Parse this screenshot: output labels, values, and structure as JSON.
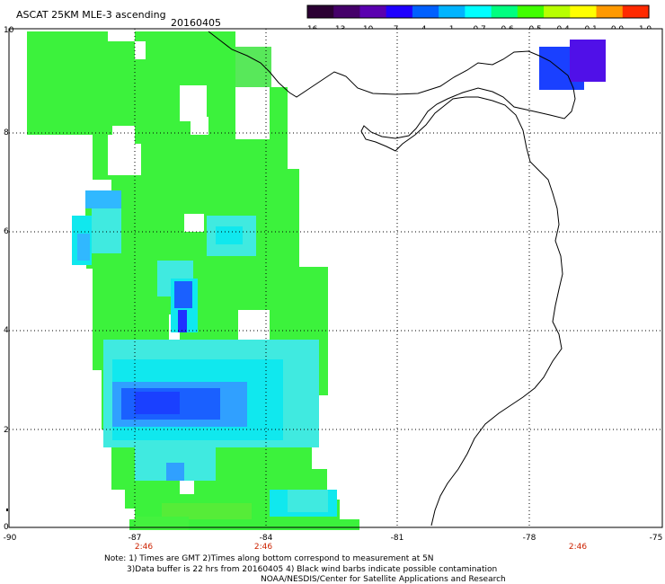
{
  "header": {
    "title": "ASCAT 25KM MLE-3 ascending",
    "date": "20160405"
  },
  "colorbar": {
    "labels": [
      "-16",
      "-13",
      "-10",
      "-7",
      "-4",
      "-1",
      "-0.7",
      "-0.6",
      "-0.5",
      "-0.4",
      "-0.1",
      "0.0",
      "1.0"
    ],
    "colors": [
      "#2b0033",
      "#45006a",
      "#5a00b0",
      "#1f00ff",
      "#0060ff",
      "#00b4ff",
      "#00ffff",
      "#00ff80",
      "#40ff00",
      "#b8ff00",
      "#ffff00",
      "#ff9900",
      "#ff2a00"
    ]
  },
  "map": {
    "lon_labels": [
      "-90",
      "-87",
      "-84",
      "-81",
      "-78",
      "-75"
    ],
    "lat_labels": [
      "0",
      "2",
      "4",
      "6",
      "8",
      "10"
    ],
    "pass_times": [
      "2:46",
      "2:46",
      "2:46"
    ],
    "colors": {
      "green": "#3cf23c",
      "cyan": "#10e8ee",
      "light_blue": "#30b8ff",
      "blue": "#1a40ff",
      "purple": "#5010e8",
      "time_label": "#cc2200",
      "grid": "#000000"
    }
  },
  "notes": {
    "line1": "Note: 1) Times are GMT 2)Times along bottom correspond to measurement at 5N",
    "line2": "3)Data buffer is 22 hrs from 20160405 4) Black wind barbs indicate possible contamination",
    "line3": "NOAA/NESDIS/Center for Satellite Applications and Research"
  }
}
